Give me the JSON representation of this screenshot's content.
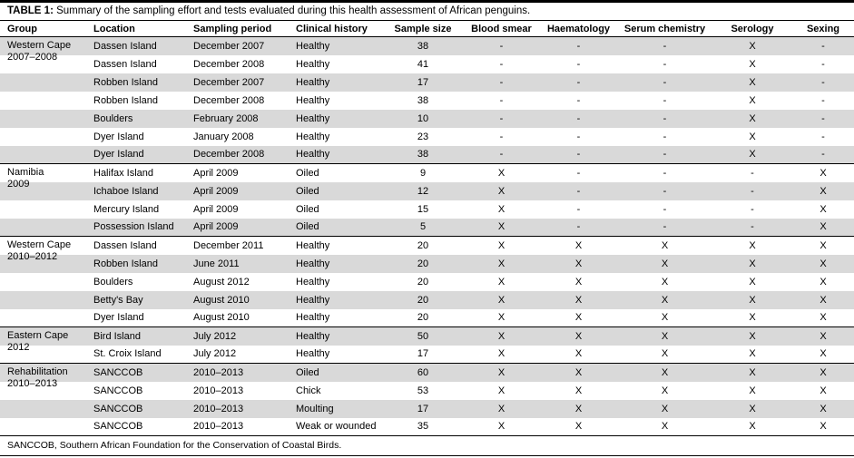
{
  "page": {
    "title_label": "TABLE 1:",
    "title_text": "Summary of the sampling effort and tests evaluated during this health assessment of African penguins.",
    "footnote": "SANCCOB, Southern African Foundation for the Conservation of Coastal Birds."
  },
  "table": {
    "columns": [
      "Group",
      "Location",
      "Sampling period",
      "Clinical history",
      "Sample size",
      "Blood smear",
      "Haematology",
      "Serum chemistry",
      "Serology",
      "Sexing"
    ],
    "groups": [
      {
        "name_lines": [
          "Western Cape",
          "2007–2008"
        ],
        "rows": [
          {
            "location": "Dassen Island",
            "period": "December 2007",
            "history": "Healthy",
            "n": "38",
            "blood_smear": "-",
            "haematology": "-",
            "serum": "-",
            "serology": "X",
            "sexing": "-"
          },
          {
            "location": "Dassen Island",
            "period": "December 2008",
            "history": "Healthy",
            "n": "41",
            "blood_smear": "-",
            "haematology": "-",
            "serum": "-",
            "serology": "X",
            "sexing": "-"
          },
          {
            "location": "Robben Island",
            "period": "December 2007",
            "history": "Healthy",
            "n": "17",
            "blood_smear": "-",
            "haematology": "-",
            "serum": "-",
            "serology": "X",
            "sexing": "-"
          },
          {
            "location": "Robben Island",
            "period": "December 2008",
            "history": "Healthy",
            "n": "38",
            "blood_smear": "-",
            "haematology": "-",
            "serum": "-",
            "serology": "X",
            "sexing": "-"
          },
          {
            "location": "Boulders",
            "period": "February 2008",
            "history": "Healthy",
            "n": "10",
            "blood_smear": "-",
            "haematology": "-",
            "serum": "-",
            "serology": "X",
            "sexing": "-"
          },
          {
            "location": "Dyer Island",
            "period": "January 2008",
            "history": "Healthy",
            "n": "23",
            "blood_smear": "-",
            "haematology": "-",
            "serum": "-",
            "serology": "X",
            "sexing": "-"
          },
          {
            "location": "Dyer Island",
            "period": "December 2008",
            "history": "Healthy",
            "n": "38",
            "blood_smear": "-",
            "haematology": "-",
            "serum": "-",
            "serology": "X",
            "sexing": "-"
          }
        ]
      },
      {
        "name_lines": [
          "Namibia",
          "2009"
        ],
        "rows": [
          {
            "location": "Halifax Island",
            "period": "April 2009",
            "history": "Oiled",
            "n": "9",
            "blood_smear": "X",
            "haematology": "-",
            "serum": "-",
            "serology": "-",
            "sexing": "X"
          },
          {
            "location": "Ichaboe Island",
            "period": "April 2009",
            "history": "Oiled",
            "n": "12",
            "blood_smear": "X",
            "haematology": "-",
            "serum": "-",
            "serology": "-",
            "sexing": "X"
          },
          {
            "location": "Mercury Island",
            "period": "April 2009",
            "history": "Oiled",
            "n": "15",
            "blood_smear": "X",
            "haematology": "-",
            "serum": "-",
            "serology": "-",
            "sexing": "X"
          },
          {
            "location": "Possession Island",
            "period": "April 2009",
            "history": "Oiled",
            "n": "5",
            "blood_smear": "X",
            "haematology": "-",
            "serum": "-",
            "serology": "-",
            "sexing": "X"
          }
        ]
      },
      {
        "name_lines": [
          "Western Cape",
          "2010–2012"
        ],
        "rows": [
          {
            "location": "Dassen Island",
            "period": "December 2011",
            "history": "Healthy",
            "n": "20",
            "blood_smear": "X",
            "haematology": "X",
            "serum": "X",
            "serology": "X",
            "sexing": "X"
          },
          {
            "location": "Robben Island",
            "period": "June 2011",
            "history": "Healthy",
            "n": "20",
            "blood_smear": "X",
            "haematology": "X",
            "serum": "X",
            "serology": "X",
            "sexing": "X"
          },
          {
            "location": "Boulders",
            "period": "August 2012",
            "history": "Healthy",
            "n": "20",
            "blood_smear": "X",
            "haematology": "X",
            "serum": "X",
            "serology": "X",
            "sexing": "X"
          },
          {
            "location": "Betty's Bay",
            "period": "August 2010",
            "history": "Healthy",
            "n": "20",
            "blood_smear": "X",
            "haematology": "X",
            "serum": "X",
            "serology": "X",
            "sexing": "X"
          },
          {
            "location": "Dyer Island",
            "period": "August 2010",
            "history": "Healthy",
            "n": "20",
            "blood_smear": "X",
            "haematology": "X",
            "serum": "X",
            "serology": "X",
            "sexing": "X"
          }
        ]
      },
      {
        "name_lines": [
          "Eastern Cape",
          "2012"
        ],
        "rows": [
          {
            "location": "Bird Island",
            "period": "July 2012",
            "history": "Healthy",
            "n": "50",
            "blood_smear": "X",
            "haematology": "X",
            "serum": "X",
            "serology": "X",
            "sexing": "X"
          },
          {
            "location": "St. Croix Island",
            "period": "July 2012",
            "history": "Healthy",
            "n": "17",
            "blood_smear": "X",
            "haematology": "X",
            "serum": "X",
            "serology": "X",
            "sexing": "X"
          }
        ]
      },
      {
        "name_lines": [
          "Rehabilitation",
          "2010–2013"
        ],
        "rows": [
          {
            "location": "SANCCOB",
            "period": "2010–2013",
            "history": "Oiled",
            "n": "60",
            "blood_smear": "X",
            "haematology": "X",
            "serum": "X",
            "serology": "X",
            "sexing": "X"
          },
          {
            "location": "SANCCOB",
            "period": "2010–2013",
            "history": "Chick",
            "n": "53",
            "blood_smear": "X",
            "haematology": "X",
            "serum": "X",
            "serology": "X",
            "sexing": "X"
          },
          {
            "location": "SANCCOB",
            "period": "2010–2013",
            "history": "Moulting",
            "n": "17",
            "blood_smear": "X",
            "haematology": "X",
            "serum": "X",
            "serology": "X",
            "sexing": "X"
          },
          {
            "location": "SANCCOB",
            "period": "2010–2013",
            "history": "Weak or wounded",
            "n": "35",
            "blood_smear": "X",
            "haematology": "X",
            "serum": "X",
            "serology": "X",
            "sexing": "X"
          }
        ]
      }
    ]
  },
  "colors": {
    "row_shade": "#d9d9d9",
    "rule": "#000000"
  }
}
